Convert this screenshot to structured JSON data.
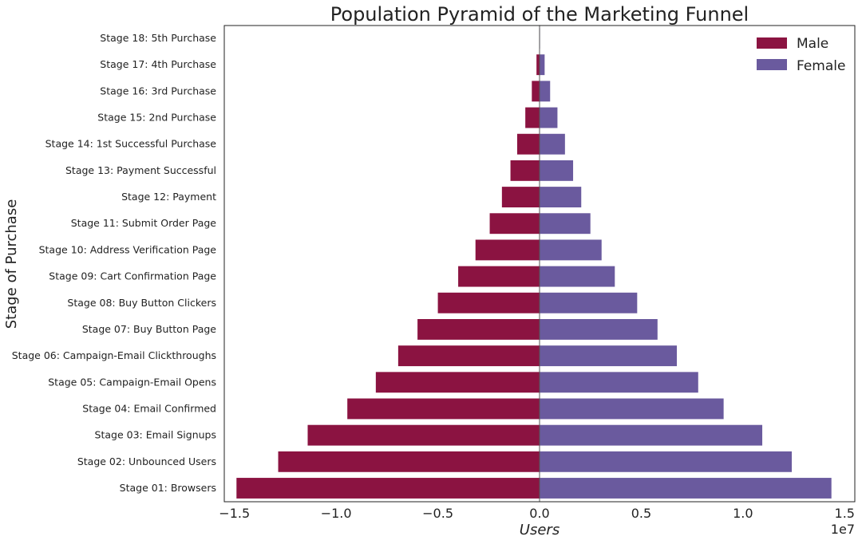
{
  "chart_data": {
    "type": "bar",
    "orientation": "horizontal",
    "title": "Population Pyramid of the Marketing Funnel",
    "xlabel": "Users",
    "ylabel": "Stage of Purchase",
    "x_offset_label": "1e7",
    "xlim": [
      -1.55,
      1.55
    ],
    "xticks": [
      -1.5,
      -1.0,
      -0.5,
      0.0,
      0.5,
      1.0,
      1.5
    ],
    "xtick_labels": [
      "−1.5",
      "−1.0",
      "−0.5",
      "0.0",
      "0.5",
      "1.0",
      "1.5"
    ],
    "grid": false,
    "legend_position": "top-right",
    "categories": [
      "Stage 01: Browsers",
      "Stage 02: Unbounced Users",
      "Stage 03: Email Signups",
      "Stage 04: Email Confirmed",
      "Stage 05: Campaign-Email Opens",
      "Stage 06: Campaign-Email Clickthroughs",
      "Stage 07: Buy Button Page",
      "Stage 08: Buy Button Clickers",
      "Stage 09: Cart Confirmation Page",
      "Stage 10: Address Verification Page",
      "Stage 11: Submit Order Page",
      "Stage 12: Payment",
      "Stage 13: Payment Successful",
      "Stage 14: 1st Successful Purchase",
      "Stage 15: 2nd Purchase",
      "Stage 16: 3rd Purchase",
      "Stage 17: 4th Purchase",
      "Stage 18: 5th Purchase"
    ],
    "series": [
      {
        "name": "Male",
        "color": "#8b1341",
        "values": [
          -1.49,
          -1.285,
          -1.14,
          -0.945,
          -0.805,
          -0.695,
          -0.6,
          -0.5,
          -0.4,
          -0.315,
          -0.245,
          -0.185,
          -0.143,
          -0.11,
          -0.07,
          -0.038,
          -0.015,
          -0.002
        ]
      },
      {
        "name": "Female",
        "color": "#6a5a9e",
        "values": [
          1.435,
          1.24,
          1.095,
          0.905,
          0.78,
          0.675,
          0.58,
          0.48,
          0.37,
          0.305,
          0.25,
          0.205,
          0.165,
          0.125,
          0.088,
          0.052,
          0.025,
          0.002
        ]
      }
    ]
  }
}
